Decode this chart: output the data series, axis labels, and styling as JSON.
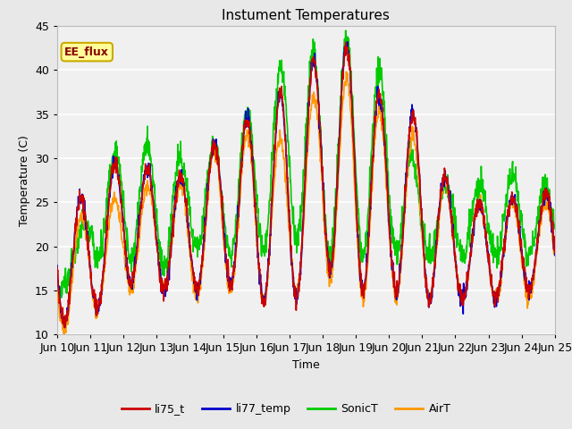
{
  "title": "Instument Temperatures",
  "xlabel": "Time",
  "ylabel": "Temperature (C)",
  "ylim": [
    10,
    45
  ],
  "xlim": [
    0,
    15
  ],
  "fig_bg_color": "#e8e8e8",
  "plot_bg_color": "#f0f0f0",
  "shaded_band": [
    35,
    45
  ],
  "shaded_color": "#e0e0e0",
  "annotation_text": "EE_flux",
  "annotation_bg": "#ffff99",
  "annotation_border": "#ccaa00",
  "annotation_text_color": "#880000",
  "grid_color": "#ffffff",
  "xtick_labels": [
    "Jun 10",
    "Jun 11",
    "Jun 12",
    "Jun 13",
    "Jun 14",
    "Jun 15",
    "Jun 16",
    "Jun 17",
    "Jun 18",
    "Jun 19",
    "Jun 20",
    "Jun 21",
    "Jun 22",
    "Jun 23",
    "Jun 24",
    "Jun 25"
  ],
  "yticks": [
    10,
    15,
    20,
    25,
    30,
    35,
    40,
    45
  ],
  "series_colors": {
    "li75_t": "#cc0000",
    "li77_temp": "#0000cc",
    "SonicT": "#00cc00",
    "AirT": "#ff9900"
  },
  "series_lw": 1.2,
  "legend_entries": [
    "li75_t",
    "li77_temp",
    "SonicT",
    "AirT"
  ],
  "day_max_li": [
    27,
    25,
    31,
    28,
    28,
    33,
    35,
    38,
    42,
    43,
    35,
    35,
    25,
    25,
    26,
    26
  ],
  "day_min_li": [
    11,
    12,
    16,
    15,
    15,
    16,
    14,
    13,
    18,
    15,
    15,
    14,
    14,
    14,
    15,
    15
  ],
  "day_max_sonic": [
    15,
    25,
    33,
    31,
    30,
    32,
    36,
    42,
    42,
    44,
    38,
    27,
    27,
    27,
    28,
    26
  ],
  "day_min_sonic": [
    15,
    19,
    19,
    17,
    20,
    19,
    19,
    21,
    19,
    19,
    19,
    19,
    19,
    19,
    19,
    19
  ],
  "day_max_air": [
    22,
    24,
    26,
    27,
    27,
    32,
    33,
    32,
    39,
    39,
    34,
    32,
    25,
    25,
    25,
    25
  ],
  "day_min_air": [
    10,
    12,
    15,
    16,
    14,
    15,
    14,
    14,
    17,
    14,
    14,
    14,
    14,
    14,
    14,
    14
  ]
}
